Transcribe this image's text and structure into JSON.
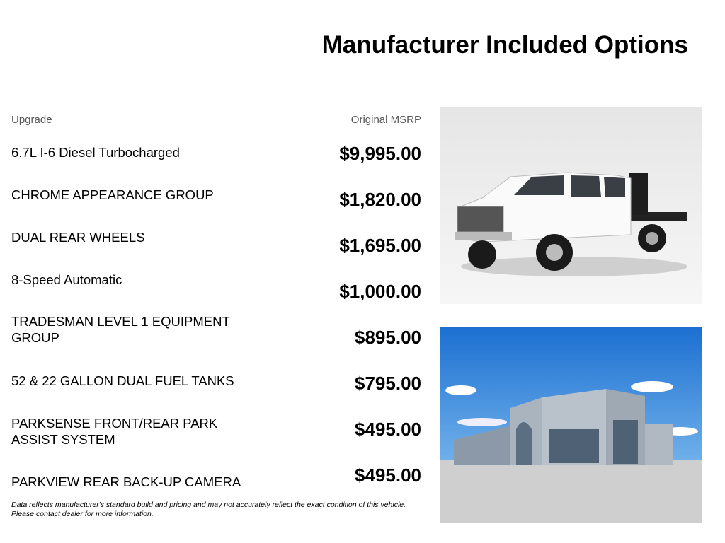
{
  "title": "Manufacturer Included Options",
  "columns": {
    "upgrade": "Upgrade",
    "msrp": "Original MSRP"
  },
  "options": [
    {
      "name": "6.7L I-6 Diesel Turbocharged",
      "price": "$9,995.00"
    },
    {
      "name": "CHROME APPEARANCE GROUP",
      "price": "$1,820.00"
    },
    {
      "name": "DUAL REAR WHEELS",
      "price": "$1,695.00"
    },
    {
      "name": "8-Speed Automatic",
      "price": "$1,000.00"
    },
    {
      "name": "TRADESMAN LEVEL 1 EQUIPMENT GROUP",
      "price": "$895.00"
    },
    {
      "name": "52 & 22 GALLON DUAL FUEL TANKS",
      "price": "$795.00"
    },
    {
      "name": "PARKSENSE FRONT/REAR PARK ASSIST SYSTEM",
      "price": "$495.00"
    },
    {
      "name": "PARKVIEW REAR BACK-UP CAMERA",
      "price": "$495.00"
    }
  ],
  "disclaimer": {
    "line1": "Data reflects manufacturer's standard build and pricing and may not accurately reflect the exact condition of this vehicle.",
    "line2": "Please contact dealer for more information."
  },
  "images": {
    "truck": "white flatbed pickup truck",
    "dealership": "dealership building"
  }
}
